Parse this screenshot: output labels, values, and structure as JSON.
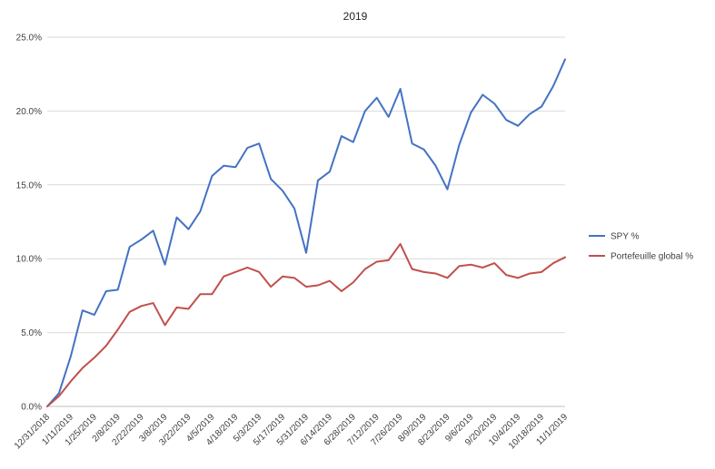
{
  "chart_data": {
    "type": "line",
    "title": "2019",
    "xlabel": "",
    "ylabel": "",
    "ylim": [
      0,
      25
    ],
    "y_ticks": [
      "0.0%",
      "5.0%",
      "10.0%",
      "15.0%",
      "20.0%",
      "25.0%"
    ],
    "y_tick_values": [
      0,
      5,
      10,
      15,
      20,
      25
    ],
    "grid": "horizontal",
    "legend_position": "right",
    "x": [
      "12/31/2018",
      "1/4/2019",
      "1/11/2019",
      "1/18/2019",
      "1/25/2019",
      "2/1/2019",
      "2/8/2019",
      "2/15/2019",
      "2/22/2019",
      "3/1/2019",
      "3/8/2019",
      "3/15/2019",
      "3/22/2019",
      "3/29/2019",
      "4/5/2019",
      "4/12/2019",
      "4/18/2019",
      "4/26/2019",
      "5/3/2019",
      "5/10/2019",
      "5/17/2019",
      "5/24/2019",
      "5/31/2019",
      "6/7/2019",
      "6/14/2019",
      "6/21/2019",
      "6/28/2019",
      "7/5/2019",
      "7/12/2019",
      "7/19/2019",
      "7/26/2019",
      "8/2/2019",
      "8/9/2019",
      "8/16/2019",
      "8/23/2019",
      "8/30/2019",
      "9/6/2019",
      "9/13/2019",
      "9/20/2019",
      "9/27/2019",
      "10/4/2019",
      "10/11/2019",
      "10/18/2019",
      "10/25/2019",
      "11/1/2019"
    ],
    "x_tick_labels": [
      "12/31/2018",
      "1/11/2019",
      "1/25/2019",
      "2/8/2019",
      "2/22/2019",
      "3/8/2019",
      "3/22/2019",
      "4/5/2019",
      "4/18/2019",
      "5/3/2019",
      "5/17/2019",
      "5/31/2019",
      "6/14/2019",
      "6/28/2019",
      "7/12/2019",
      "7/26/2019",
      "8/9/2019",
      "8/23/2019",
      "9/6/2019",
      "9/20/2019",
      "10/4/2019",
      "10/18/2019",
      "11/1/2019"
    ],
    "series": [
      {
        "name": "SPY %",
        "color": "#4472C4",
        "values": [
          0.0,
          0.9,
          3.4,
          6.5,
          6.2,
          7.8,
          7.9,
          10.8,
          11.3,
          11.9,
          9.6,
          12.8,
          12.0,
          13.2,
          15.6,
          16.3,
          16.2,
          17.5,
          17.8,
          15.4,
          14.6,
          13.4,
          10.4,
          15.3,
          15.9,
          18.3,
          17.9,
          20.0,
          20.9,
          19.6,
          21.5,
          17.8,
          17.4,
          16.3,
          14.7,
          17.7,
          19.9,
          21.1,
          20.5,
          19.4,
          19.0,
          19.8,
          20.3,
          21.7,
          23.5
        ]
      },
      {
        "name": "Portefeuille global %",
        "color": "#C0504D",
        "values": [
          0.0,
          0.7,
          1.7,
          2.6,
          3.3,
          4.1,
          5.2,
          6.4,
          6.8,
          7.0,
          5.5,
          6.7,
          6.6,
          7.6,
          7.6,
          8.8,
          9.1,
          9.4,
          9.1,
          8.1,
          8.8,
          8.7,
          8.1,
          8.2,
          8.5,
          7.8,
          8.4,
          9.3,
          9.8,
          9.9,
          11.0,
          9.3,
          9.1,
          9.0,
          8.7,
          9.5,
          9.6,
          9.4,
          9.7,
          8.9,
          8.7,
          9.0,
          9.1,
          9.7,
          10.1
        ]
      }
    ]
  }
}
